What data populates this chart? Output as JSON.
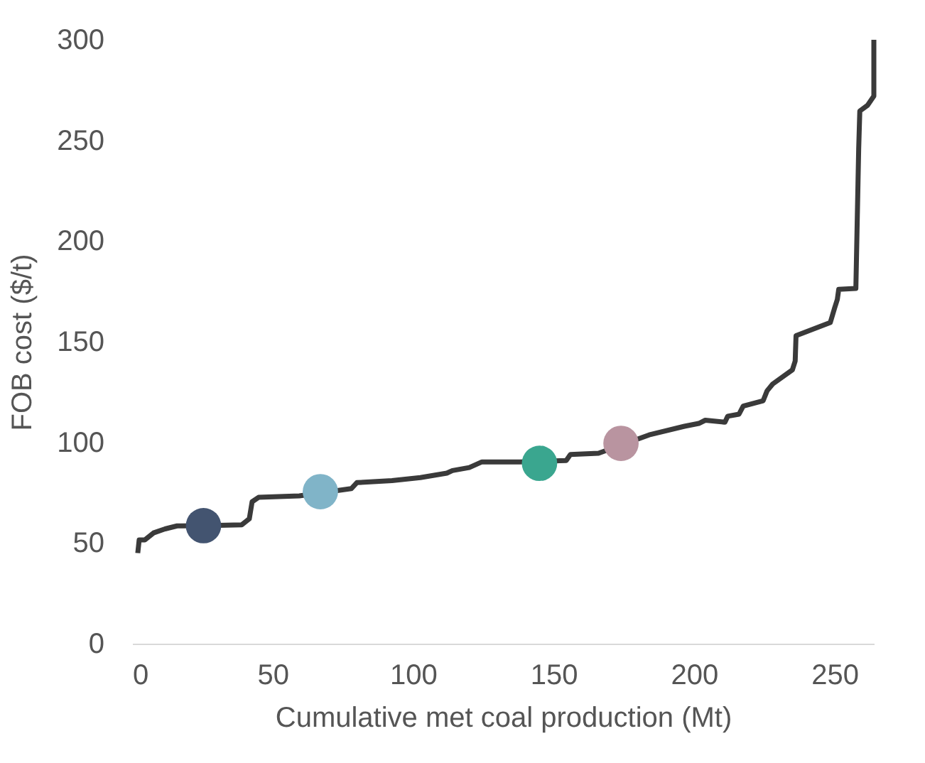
{
  "chart_data": {
    "type": "line",
    "xlabel": "Cumulative met coal production (Mt)",
    "ylabel": "FOB cost ($/t)",
    "ylim": [
      0,
      300
    ],
    "xlim": [
      0,
      264
    ],
    "xticks": [
      0,
      50,
      100,
      150,
      200,
      250
    ],
    "yticks": [
      0,
      50,
      100,
      150,
      200,
      250,
      300
    ],
    "grid": false,
    "legend": false,
    "marker": "none",
    "line_style": "solid",
    "series": [
      {
        "color": "#3a3a3a",
        "x": [
          2,
          2.5,
          4.5,
          7.6,
          11.7,
          16,
          25,
          39,
          41.7,
          42.7,
          45,
          59.5,
          78,
          80,
          92.5,
          102.6,
          112,
          114,
          120,
          124.5,
          138,
          154.5,
          156,
          166,
          184,
          196.6,
          201.7,
          204,
          211,
          212,
          216,
          217.5,
          224.6,
          226,
          228,
          235,
          236,
          236.3,
          248.5,
          250,
          251,
          251.5,
          257.6,
          258.6,
          259,
          261.8,
          264,
          264
        ],
        "values": [
          45,
          51.5,
          51.5,
          55,
          57,
          58.5,
          58.6,
          59,
          62,
          70.5,
          72.7,
          73.4,
          77,
          80,
          81,
          82.5,
          84.7,
          86,
          87.5,
          90.3,
          90.3,
          91,
          94,
          94.6,
          103.7,
          108,
          109.4,
          111,
          110,
          113,
          114,
          118,
          120.7,
          125.6,
          129,
          136,
          140.4,
          153,
          159.5,
          166.6,
          171,
          176,
          176.5,
          245.6,
          264.6,
          267.5,
          272,
          300
        ]
      },
      {
        "type": "scatter",
        "marker": "circle",
        "x": [
          25.4,
          67,
          145,
          174
        ],
        "values": [
          58.6,
          75.5,
          89.6,
          99.5
        ],
        "colors": [
          "#435470",
          "#80b4c8",
          "#3aa68f",
          "#b994a0"
        ]
      }
    ]
  }
}
